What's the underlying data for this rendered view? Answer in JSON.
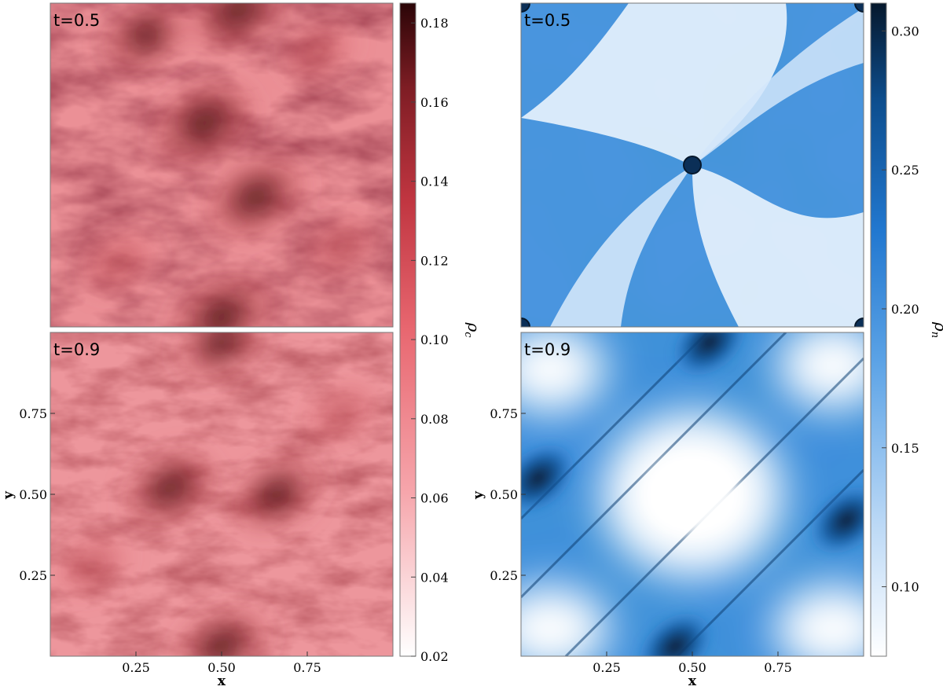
{
  "chart_data": [
    {
      "type": "heatmap",
      "panel": "top-left",
      "title": "t=0.5",
      "xlabel": "",
      "ylabel": "",
      "xlim": [
        0,
        1
      ],
      "ylim": [
        0,
        1
      ],
      "x_ticks": [],
      "y_ticks": [],
      "colorbar": {
        "label": "ρ",
        "label_sub": "c",
        "range": [
          0.02,
          0.185
        ],
        "ticks": [
          "0.02",
          "0.04",
          "0.06",
          "0.08",
          "0.10",
          "0.12",
          "0.14",
          "0.16",
          "0.18"
        ],
        "tick_values": [
          0.02,
          0.04,
          0.06,
          0.08,
          0.1,
          0.12,
          0.14,
          0.16,
          0.18
        ],
        "cmap": [
          "#ffffff",
          "#f6a6ac",
          "#e86770",
          "#c03540",
          "#7e1d24",
          "#2b0507"
        ]
      },
      "features": [
        {
          "x": 0.45,
          "y": 0.63,
          "density": 0.175
        },
        {
          "x": 0.6,
          "y": 0.4,
          "density": 0.17
        },
        {
          "x": 0.5,
          "y": 0.03,
          "density": 0.18
        },
        {
          "x": 0.55,
          "y": 0.98,
          "density": 0.165
        },
        {
          "x": 0.28,
          "y": 0.9,
          "density": 0.12
        },
        {
          "x": 0.2,
          "y": 0.2,
          "density": 0.11
        },
        {
          "x": 0.78,
          "y": 0.85,
          "density": 0.1
        },
        {
          "x": 0.85,
          "y": 0.25,
          "density": 0.1
        }
      ]
    },
    {
      "type": "heatmap",
      "panel": "bottom-left",
      "title": "t=0.9",
      "xlabel": "x",
      "ylabel": "y",
      "xlim": [
        0,
        1
      ],
      "ylim": [
        0,
        1
      ],
      "x_ticks": [
        "0.25",
        "0.50",
        "0.75"
      ],
      "x_tick_values": [
        0.25,
        0.5,
        0.75
      ],
      "y_ticks": [
        "0.25",
        "0.50",
        "0.75"
      ],
      "y_tick_values": [
        0.25,
        0.5,
        0.75
      ],
      "colorbar": "shared-left",
      "features": [
        {
          "x": 0.35,
          "y": 0.52,
          "density": 0.15
        },
        {
          "x": 0.66,
          "y": 0.5,
          "density": 0.145
        },
        {
          "x": 0.5,
          "y": 0.03,
          "density": 0.16
        },
        {
          "x": 0.5,
          "y": 0.97,
          "density": 0.14
        },
        {
          "x": 0.12,
          "y": 0.28,
          "density": 0.1
        },
        {
          "x": 0.85,
          "y": 0.75,
          "density": 0.1
        }
      ]
    },
    {
      "type": "heatmap",
      "panel": "top-right",
      "title": "t=0.5",
      "xlabel": "",
      "ylabel": "",
      "xlim": [
        0,
        1
      ],
      "ylim": [
        0,
        1
      ],
      "x_ticks": [],
      "y_ticks": [],
      "colorbar": {
        "label": "ρ",
        "label_sub": "n",
        "range": [
          0.075,
          0.31
        ],
        "ticks": [
          "0.10",
          "0.15",
          "0.20",
          "0.25",
          "0.30"
        ],
        "tick_values": [
          0.1,
          0.15,
          0.2,
          0.25,
          0.3
        ],
        "cmap": [
          "#ffffff",
          "#bcd9f6",
          "#5ca3e6",
          "#2278d0",
          "#0d4e8e",
          "#06182c"
        ]
      },
      "features": [
        {
          "x": 0.5,
          "y": 0.5,
          "density": 0.3
        },
        {
          "x": 0.0,
          "y": 0.0,
          "density": 0.28
        },
        {
          "x": 1.0,
          "y": 0.0,
          "density": 0.28
        },
        {
          "x": 0.0,
          "y": 1.0,
          "density": 0.28
        },
        {
          "x": 1.0,
          "y": 1.0,
          "density": 0.28
        }
      ]
    },
    {
      "type": "heatmap",
      "panel": "bottom-right",
      "title": "t=0.9",
      "xlabel": "x",
      "ylabel": "y",
      "xlim": [
        0,
        1
      ],
      "ylim": [
        0,
        1
      ],
      "x_ticks": [
        "0.25",
        "0.50",
        "0.75"
      ],
      "x_tick_values": [
        0.25,
        0.5,
        0.75
      ],
      "y_ticks": [
        "0.25",
        "0.50",
        "0.75"
      ],
      "y_tick_values": [
        0.25,
        0.5,
        0.75
      ],
      "colorbar": "shared-right",
      "features": [
        {
          "x": 0.05,
          "y": 0.55,
          "density": 0.3
        },
        {
          "x": 0.95,
          "y": 0.42,
          "density": 0.3
        },
        {
          "x": 0.55,
          "y": 0.97,
          "density": 0.3
        },
        {
          "x": 0.45,
          "y": 0.03,
          "density": 0.3
        },
        {
          "x": 0.5,
          "y": 0.5,
          "density": 0.075
        }
      ]
    }
  ]
}
